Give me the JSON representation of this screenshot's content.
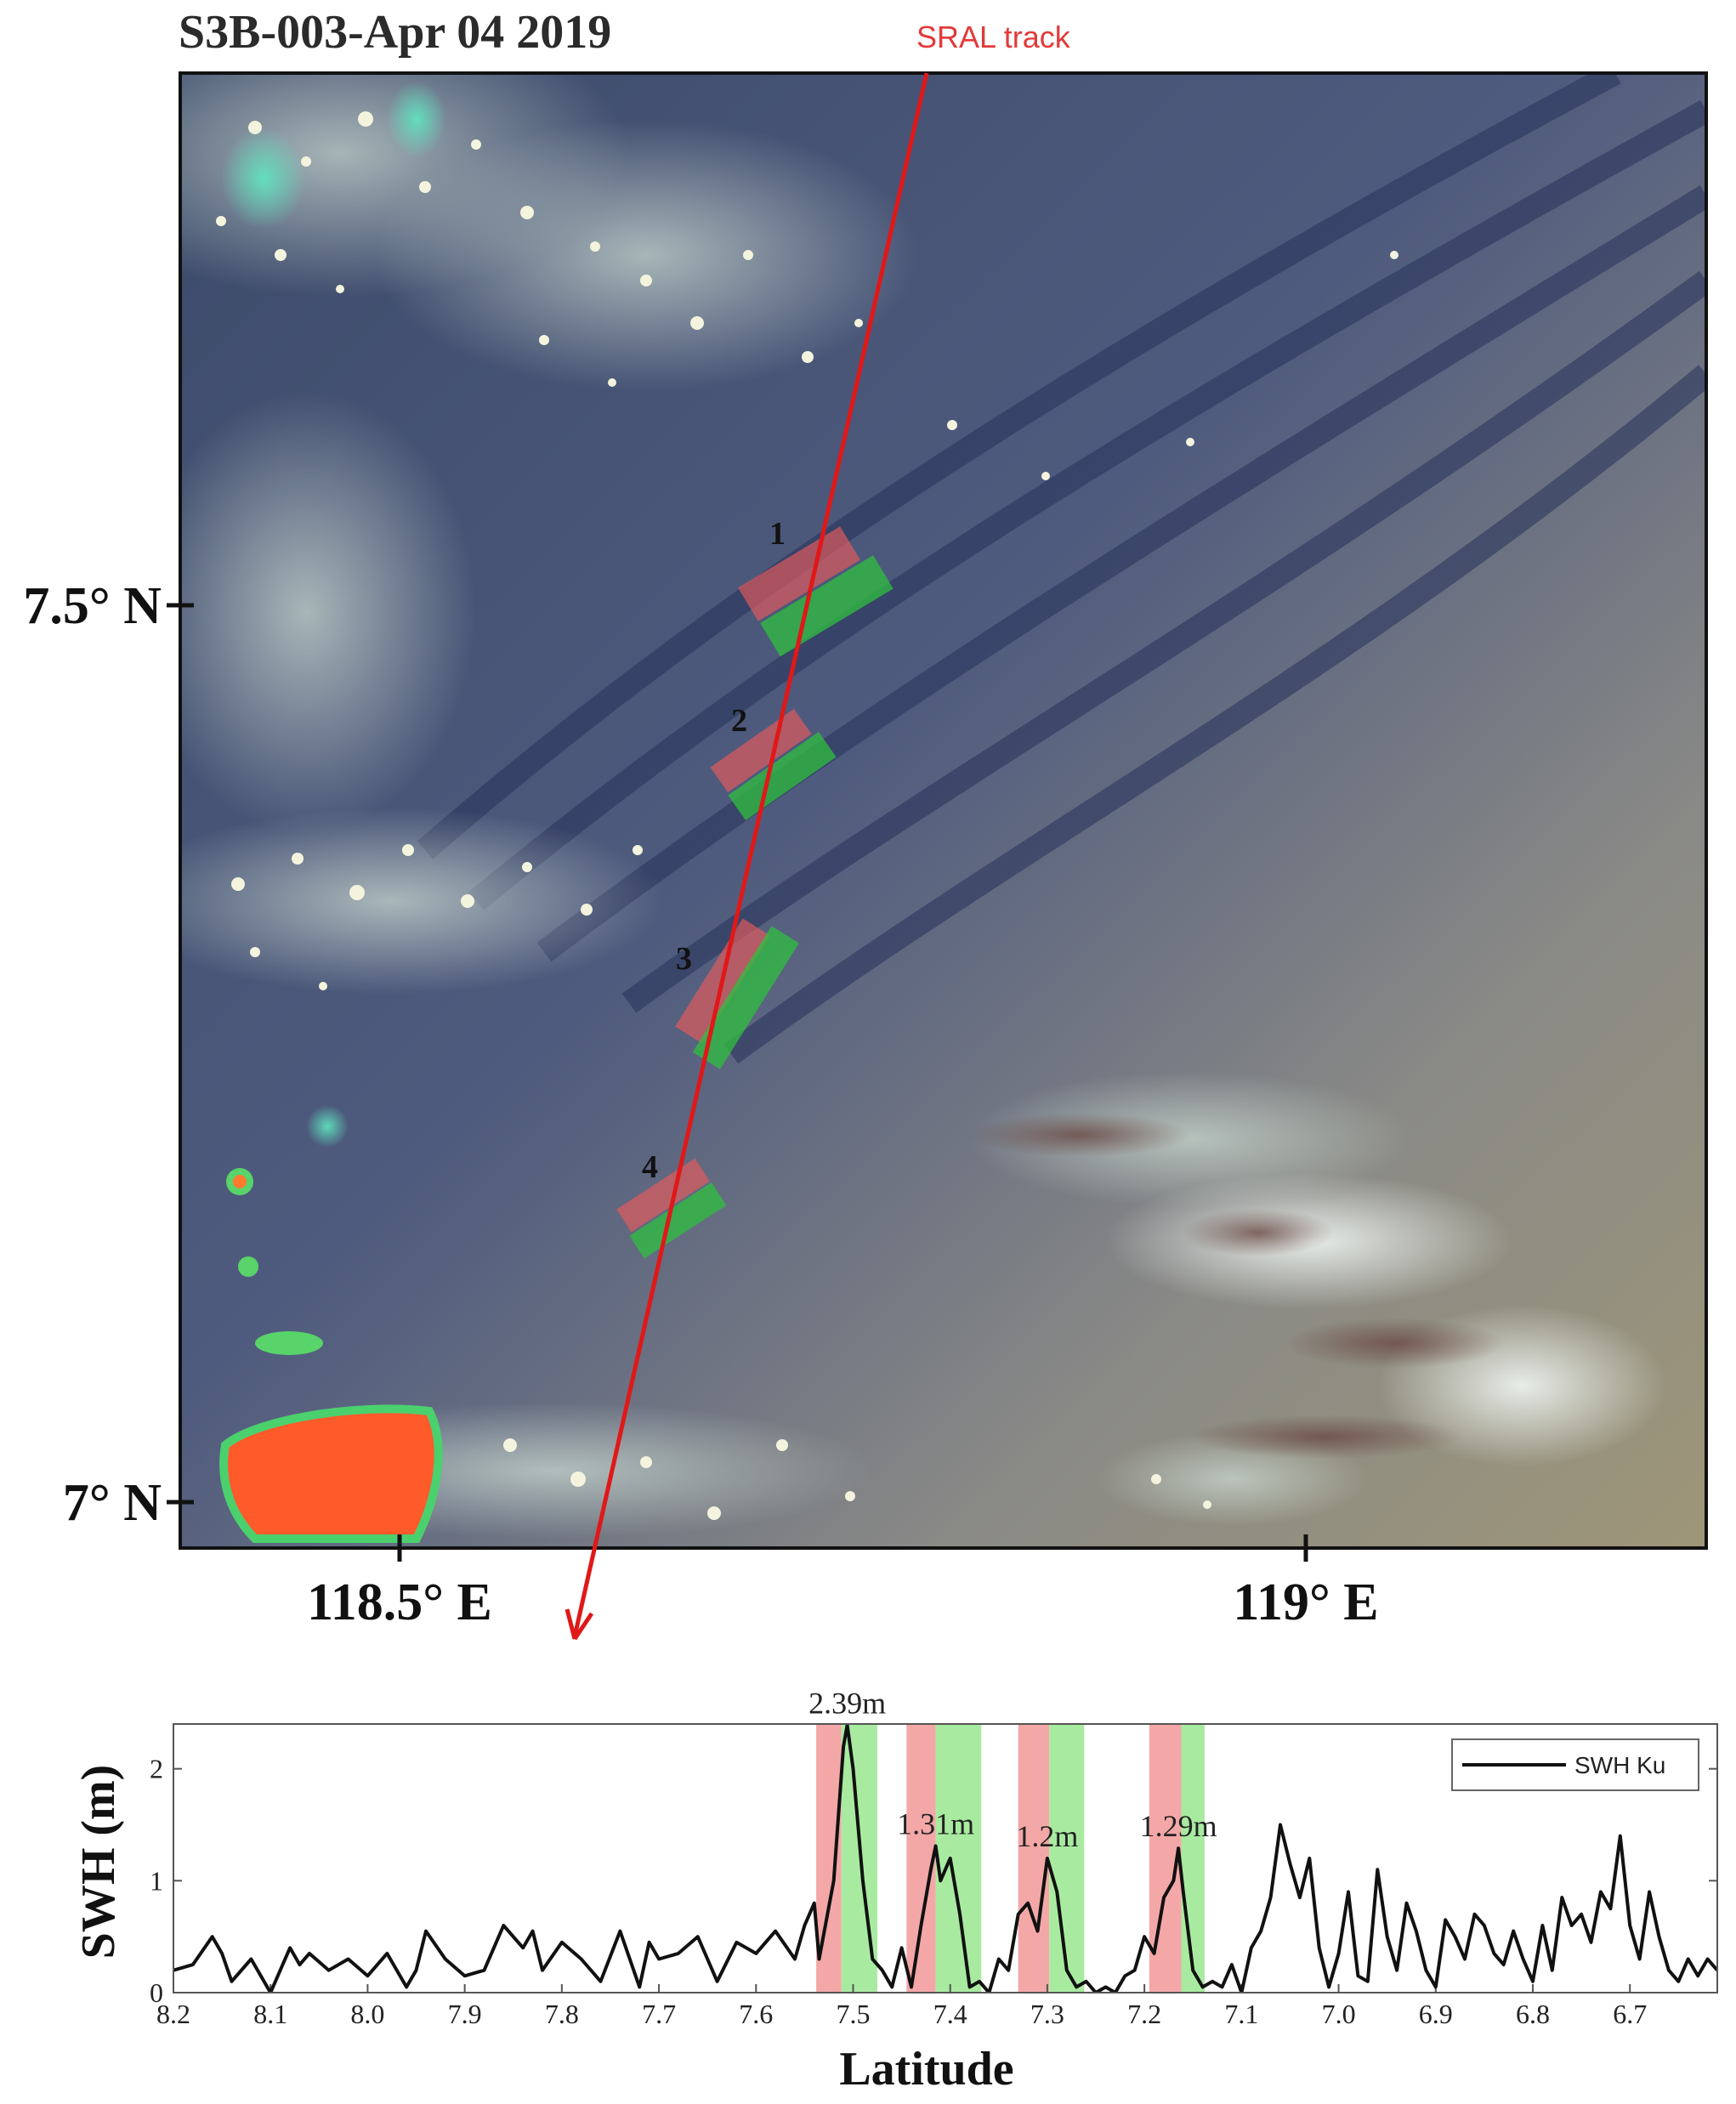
{
  "title": "S3B-003-Apr 04 2019",
  "track_label": "SRAL track",
  "map": {
    "lat_ticks": [
      "7.5° N",
      "7° N"
    ],
    "lon_ticks": [
      "118.5° E",
      "119° E"
    ],
    "box_numbers": [
      "1",
      "2",
      "3",
      "4"
    ]
  },
  "colors": {
    "track": "#e01818",
    "box_red": "#e85b5b",
    "box_green": "#2fbf3f",
    "band_red": "#f4a7a7",
    "band_green": "#a8eba0",
    "line": "#111111"
  },
  "chart_data": {
    "type": "line",
    "xlabel": "Latitude",
    "ylabel": "SWH (m)",
    "xlim": [
      8.2,
      6.61
    ],
    "ylim": [
      0,
      2.4
    ],
    "x_ticks": [
      "8.2",
      "8.1",
      "8.0",
      "7.9",
      "7.8",
      "7.7",
      "7.6",
      "7.5",
      "7.4",
      "7.3",
      "7.2",
      "7.1",
      "7.0",
      "6.9",
      "6.8",
      "6.7"
    ],
    "y_ticks": [
      "0",
      "1",
      "2"
    ],
    "legend": {
      "position": "top-right",
      "entries": [
        "SWH Ku"
      ]
    },
    "annotations": [
      {
        "text": "2.39m",
        "lat": 7.506,
        "value": 2.39
      },
      {
        "text": "1.31m",
        "lat": 7.415,
        "value": 1.31
      },
      {
        "text": "1.2m",
        "lat": 7.3,
        "value": 1.2
      },
      {
        "text": "1.29m",
        "lat": 7.165,
        "value": 1.29
      }
    ],
    "highlight_bands": [
      {
        "color": "red",
        "from": 7.538,
        "to": 7.512
      },
      {
        "color": "green",
        "from": 7.512,
        "to": 7.475
      },
      {
        "color": "red",
        "from": 7.445,
        "to": 7.415
      },
      {
        "color": "green",
        "from": 7.415,
        "to": 7.368
      },
      {
        "color": "red",
        "from": 7.33,
        "to": 7.298
      },
      {
        "color": "green",
        "from": 7.298,
        "to": 7.262
      },
      {
        "color": "red",
        "from": 7.195,
        "to": 7.162
      },
      {
        "color": "green",
        "from": 7.162,
        "to": 7.138
      }
    ],
    "series": [
      {
        "name": "SWH Ku",
        "x": [
          8.2,
          8.18,
          8.16,
          8.15,
          8.14,
          8.12,
          8.1,
          8.08,
          8.07,
          8.06,
          8.04,
          8.02,
          8.0,
          7.98,
          7.96,
          7.95,
          7.94,
          7.92,
          7.9,
          7.88,
          7.86,
          7.84,
          7.83,
          7.82,
          7.8,
          7.78,
          7.76,
          7.74,
          7.72,
          7.71,
          7.7,
          7.68,
          7.66,
          7.64,
          7.62,
          7.6,
          7.58,
          7.56,
          7.55,
          7.54,
          7.535,
          7.52,
          7.51,
          7.506,
          7.5,
          7.49,
          7.48,
          7.47,
          7.46,
          7.45,
          7.44,
          7.43,
          7.42,
          7.415,
          7.41,
          7.4,
          7.39,
          7.38,
          7.37,
          7.36,
          7.35,
          7.34,
          7.33,
          7.32,
          7.31,
          7.3,
          7.29,
          7.28,
          7.27,
          7.26,
          7.25,
          7.24,
          7.23,
          7.22,
          7.21,
          7.2,
          7.19,
          7.18,
          7.17,
          7.165,
          7.16,
          7.15,
          7.14,
          7.13,
          7.12,
          7.11,
          7.1,
          7.09,
          7.08,
          7.07,
          7.06,
          7.05,
          7.04,
          7.03,
          7.02,
          7.01,
          7.0,
          6.99,
          6.98,
          6.97,
          6.96,
          6.95,
          6.94,
          6.93,
          6.92,
          6.91,
          6.9,
          6.89,
          6.88,
          6.87,
          6.86,
          6.85,
          6.84,
          6.83,
          6.82,
          6.81,
          6.8,
          6.79,
          6.78,
          6.77,
          6.76,
          6.75,
          6.74,
          6.73,
          6.72,
          6.71,
          6.7,
          6.69,
          6.68,
          6.67,
          6.66,
          6.65,
          6.64,
          6.63,
          6.62,
          6.61
        ],
        "values": [
          0.2,
          0.25,
          0.5,
          0.35,
          0.1,
          0.3,
          0.0,
          0.4,
          0.25,
          0.35,
          0.2,
          0.3,
          0.15,
          0.35,
          0.05,
          0.2,
          0.55,
          0.3,
          0.15,
          0.2,
          0.6,
          0.4,
          0.55,
          0.2,
          0.45,
          0.3,
          0.1,
          0.55,
          0.05,
          0.45,
          0.3,
          0.35,
          0.5,
          0.1,
          0.45,
          0.35,
          0.55,
          0.3,
          0.6,
          0.8,
          0.3,
          1.0,
          2.2,
          2.39,
          2.0,
          1.0,
          0.3,
          0.2,
          0.05,
          0.4,
          0.05,
          0.6,
          1.1,
          1.31,
          1.0,
          1.2,
          0.7,
          0.05,
          0.1,
          0.0,
          0.3,
          0.2,
          0.7,
          0.8,
          0.55,
          1.2,
          0.9,
          0.2,
          0.05,
          0.1,
          0.0,
          0.05,
          0.0,
          0.15,
          0.2,
          0.5,
          0.35,
          0.85,
          1.0,
          1.29,
          0.9,
          0.2,
          0.05,
          0.1,
          0.05,
          0.25,
          0.0,
          0.4,
          0.55,
          0.85,
          1.5,
          1.15,
          0.85,
          1.2,
          0.4,
          0.05,
          0.35,
          0.9,
          0.15,
          0.1,
          1.1,
          0.5,
          0.2,
          0.8,
          0.55,
          0.2,
          0.05,
          0.65,
          0.5,
          0.3,
          0.7,
          0.6,
          0.35,
          0.25,
          0.55,
          0.3,
          0.1,
          0.6,
          0.2,
          0.85,
          0.6,
          0.7,
          0.45,
          0.9,
          0.75,
          1.4,
          0.6,
          0.3,
          0.9,
          0.5,
          0.2,
          0.1,
          0.3,
          0.15,
          0.3,
          0.2
        ]
      }
    ]
  }
}
